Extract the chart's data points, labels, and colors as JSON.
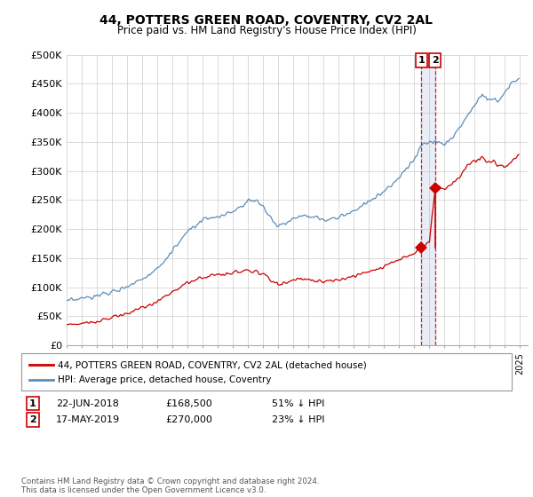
{
  "title": "44, POTTERS GREEN ROAD, COVENTRY, CV2 2AL",
  "subtitle": "Price paid vs. HM Land Registry's House Price Index (HPI)",
  "ylabel_ticks": [
    "£0",
    "£50K",
    "£100K",
    "£150K",
    "£200K",
    "£250K",
    "£300K",
    "£350K",
    "£400K",
    "£450K",
    "£500K"
  ],
  "ylim": [
    0,
    500000
  ],
  "xlim_start": 1995.0,
  "xlim_end": 2025.5,
  "hpi_color": "#5b8db8",
  "price_color": "#cc0000",
  "vline_color": "#cc0000",
  "transaction1_date": 2018.47,
  "transaction1_price": 168500,
  "transaction2_date": 2019.37,
  "transaction2_price": 270000,
  "legend_label_price": "44, POTTERS GREEN ROAD, COVENTRY, CV2 2AL (detached house)",
  "legend_label_hpi": "HPI: Average price, detached house, Coventry",
  "footnote": "Contains HM Land Registry data © Crown copyright and database right 2024.\nThis data is licensed under the Open Government Licence v3.0.",
  "background_color": "#ffffff",
  "grid_color": "#cccccc"
}
